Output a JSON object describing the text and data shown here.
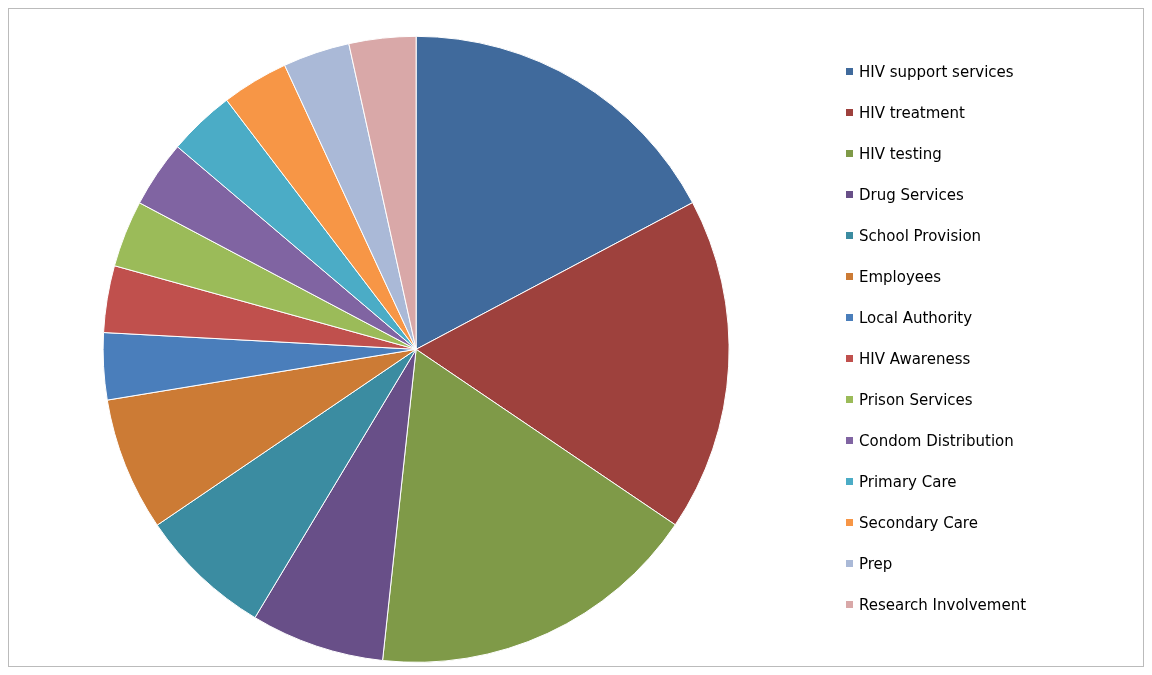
{
  "chart_data": {
    "type": "pie",
    "categories": [
      "HIV support services",
      "HIV treatment",
      "HIV testing",
      "Drug Services",
      "School Provision",
      "Employees",
      "Local Authority",
      "HIV Awareness",
      "Prison Services",
      "Condom Distribution",
      "Primary Care",
      "Secondary Care",
      "Prep",
      "Research Involvement"
    ],
    "values": [
      17.24,
      17.24,
      17.24,
      6.9,
      6.9,
      6.9,
      3.45,
      3.45,
      3.45,
      3.45,
      3.45,
      3.45,
      3.45,
      3.45
    ],
    "colors": [
      "#406a9c",
      "#9e413d",
      "#7f9a48",
      "#684f88",
      "#3b8ca1",
      "#cc7b35",
      "#4a7ebb",
      "#c0504d",
      "#9bbb59",
      "#8064a2",
      "#4bacc6",
      "#f79646",
      "#aab9d7",
      "#d9a8a8"
    ],
    "legend": "right"
  }
}
